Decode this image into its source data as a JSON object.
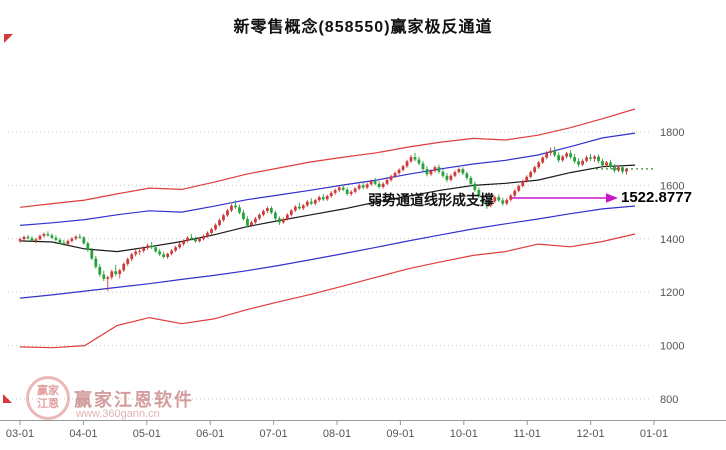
{
  "page": {
    "title": "新零售概念(858550)赢家极反通道"
  },
  "annotation": {
    "text": "弱势通道线形成支撑",
    "value": "1522.8777"
  },
  "watermark": {
    "brand": "赢家江恩软件",
    "site": "www.360gann.cn",
    "logo_text": "赢家江恩"
  },
  "chart_data": {
    "type": "candlestick",
    "title": "新零售概念(858550)赢家极反通道",
    "ylabel": "",
    "xlabel": "",
    "ylim": [
      800,
      1900
    ],
    "y_ticks": [
      800,
      1000,
      1200,
      1400,
      1600,
      1800
    ],
    "x_ticks": [
      "03-01",
      "04-01",
      "05-01",
      "06-01",
      "07-01",
      "08-01",
      "09-01",
      "10-01",
      "11-01",
      "12-01",
      "01-01"
    ],
    "grid": "horizontal-dotted",
    "legend": "none",
    "support_value": 1522.8777,
    "last_price": 1662,
    "colors": {
      "up": "#cc3a3a",
      "down": "#27a13c",
      "channel_outer": "#e03c3c",
      "channel_inner": "#3232cc",
      "mid": "#1a1a1a",
      "last_price": "#3d8a3d",
      "arrow": "#c716c7",
      "grid": "#c9c9c9",
      "axis": "#9a9a9a",
      "tick_text": "#555555"
    },
    "lines": {
      "x_months": [
        0,
        0.51,
        1.02,
        1.53,
        2.04,
        2.55,
        3.06,
        3.57,
        4.08,
        4.59,
        5.11,
        5.62,
        6.13,
        6.64,
        7.15,
        7.66,
        8.17,
        8.68,
        9.19,
        9.7
      ],
      "upper_red": [
        1518,
        1532,
        1545,
        1568,
        1590,
        1585,
        1612,
        1642,
        1665,
        1688,
        1706,
        1722,
        1744,
        1762,
        1776,
        1770,
        1788,
        1816,
        1850,
        1886
      ],
      "upper_blue": [
        1450,
        1460,
        1472,
        1490,
        1505,
        1500,
        1522,
        1546,
        1564,
        1582,
        1602,
        1620,
        1642,
        1662,
        1680,
        1694,
        1714,
        1745,
        1778,
        1796
      ],
      "mid_black": [
        1392,
        1388,
        1362,
        1352,
        1370,
        1390,
        1415,
        1445,
        1468,
        1490,
        1512,
        1538,
        1560,
        1582,
        1600,
        1608,
        1620,
        1648,
        1670,
        1676
      ],
      "lower_blue": [
        1178,
        1190,
        1204,
        1218,
        1232,
        1248,
        1263,
        1280,
        1300,
        1322,
        1345,
        1368,
        1392,
        1415,
        1437,
        1456,
        1474,
        1494,
        1512,
        1523
      ],
      "lower_red": [
        995,
        992,
        1000,
        1075,
        1105,
        1082,
        1100,
        1134,
        1164,
        1192,
        1224,
        1256,
        1288,
        1314,
        1338,
        1352,
        1380,
        1370,
        1390,
        1418
      ]
    },
    "candles_ohlc": [
      [
        1392,
        1405,
        1385,
        1399
      ],
      [
        1399,
        1412,
        1394,
        1407
      ],
      [
        1407,
        1415,
        1398,
        1402
      ],
      [
        1402,
        1410,
        1388,
        1393
      ],
      [
        1393,
        1404,
        1384,
        1398
      ],
      [
        1398,
        1416,
        1395,
        1411
      ],
      [
        1411,
        1424,
        1405,
        1418
      ],
      [
        1418,
        1428,
        1408,
        1413
      ],
      [
        1413,
        1420,
        1399,
        1404
      ],
      [
        1404,
        1412,
        1390,
        1396
      ],
      [
        1396,
        1402,
        1380,
        1385
      ],
      [
        1385,
        1396,
        1374,
        1380
      ],
      [
        1380,
        1397,
        1376,
        1392
      ],
      [
        1392,
        1406,
        1387,
        1401
      ],
      [
        1401,
        1413,
        1395,
        1408
      ],
      [
        1408,
        1418,
        1400,
        1405
      ],
      [
        1405,
        1410,
        1378,
        1383
      ],
      [
        1383,
        1390,
        1352,
        1358
      ],
      [
        1358,
        1366,
        1320,
        1326
      ],
      [
        1326,
        1336,
        1288,
        1295
      ],
      [
        1295,
        1305,
        1258,
        1266
      ],
      [
        1266,
        1280,
        1242,
        1250
      ],
      [
        1250,
        1262,
        1205,
        1256
      ],
      [
        1256,
        1284,
        1248,
        1278
      ],
      [
        1278,
        1302,
        1260,
        1268
      ],
      [
        1268,
        1288,
        1252,
        1282
      ],
      [
        1282,
        1312,
        1276,
        1306
      ],
      [
        1306,
        1330,
        1298,
        1324
      ],
      [
        1324,
        1348,
        1316,
        1342
      ],
      [
        1342,
        1360,
        1334,
        1352
      ],
      [
        1352,
        1366,
        1340,
        1355
      ],
      [
        1355,
        1372,
        1348,
        1366
      ],
      [
        1366,
        1382,
        1358,
        1375
      ],
      [
        1375,
        1388,
        1362,
        1368
      ],
      [
        1368,
        1376,
        1348,
        1353
      ],
      [
        1353,
        1362,
        1336,
        1342
      ],
      [
        1342,
        1352,
        1326,
        1332
      ],
      [
        1332,
        1348,
        1325,
        1344
      ],
      [
        1344,
        1362,
        1338,
        1356
      ],
      [
        1356,
        1374,
        1350,
        1368
      ],
      [
        1368,
        1386,
        1362,
        1380
      ],
      [
        1380,
        1398,
        1374,
        1392
      ],
      [
        1392,
        1410,
        1386,
        1404
      ],
      [
        1404,
        1418,
        1395,
        1399
      ],
      [
        1399,
        1408,
        1385,
        1391
      ],
      [
        1391,
        1405,
        1386,
        1400
      ],
      [
        1400,
        1416,
        1394,
        1410
      ],
      [
        1410,
        1428,
        1404,
        1422
      ],
      [
        1422,
        1442,
        1416,
        1436
      ],
      [
        1436,
        1458,
        1430,
        1452
      ],
      [
        1452,
        1476,
        1446,
        1470
      ],
      [
        1470,
        1494,
        1464,
        1488
      ],
      [
        1488,
        1512,
        1482,
        1506
      ],
      [
        1506,
        1530,
        1500,
        1524
      ],
      [
        1524,
        1544,
        1512,
        1518
      ],
      [
        1518,
        1528,
        1492,
        1498
      ],
      [
        1498,
        1508,
        1468,
        1474
      ],
      [
        1474,
        1484,
        1442,
        1450
      ],
      [
        1450,
        1468,
        1444,
        1462
      ],
      [
        1462,
        1482,
        1456,
        1476
      ],
      [
        1476,
        1496,
        1470,
        1490
      ],
      [
        1490,
        1510,
        1484,
        1504
      ],
      [
        1504,
        1522,
        1496,
        1515
      ],
      [
        1515,
        1522,
        1492,
        1498
      ],
      [
        1498,
        1506,
        1470,
        1476
      ],
      [
        1476,
        1484,
        1452,
        1462
      ],
      [
        1462,
        1480,
        1456,
        1474
      ],
      [
        1474,
        1496,
        1468,
        1490
      ],
      [
        1490,
        1512,
        1484,
        1506
      ],
      [
        1506,
        1526,
        1500,
        1520
      ],
      [
        1520,
        1536,
        1508,
        1514
      ],
      [
        1514,
        1530,
        1508,
        1525
      ],
      [
        1525,
        1545,
        1519,
        1539
      ],
      [
        1539,
        1552,
        1526,
        1532
      ],
      [
        1532,
        1550,
        1526,
        1545
      ],
      [
        1545,
        1562,
        1538,
        1556
      ],
      [
        1556,
        1568,
        1542,
        1548
      ],
      [
        1548,
        1566,
        1542,
        1560
      ],
      [
        1560,
        1578,
        1554,
        1572
      ],
      [
        1572,
        1588,
        1565,
        1582
      ],
      [
        1582,
        1598,
        1575,
        1592
      ],
      [
        1592,
        1604,
        1578,
        1584
      ],
      [
        1584,
        1592,
        1562,
        1568
      ],
      [
        1568,
        1582,
        1560,
        1576
      ],
      [
        1576,
        1594,
        1570,
        1588
      ],
      [
        1588,
        1606,
        1582,
        1600
      ],
      [
        1600,
        1612,
        1586,
        1592
      ],
      [
        1592,
        1610,
        1586,
        1604
      ],
      [
        1604,
        1622,
        1598,
        1616
      ],
      [
        1616,
        1628,
        1600,
        1606
      ],
      [
        1606,
        1616,
        1588,
        1594
      ],
      [
        1594,
        1612,
        1588,
        1606
      ],
      [
        1606,
        1626,
        1600,
        1620
      ],
      [
        1620,
        1640,
        1614,
        1634
      ],
      [
        1634,
        1652,
        1628,
        1646
      ],
      [
        1646,
        1664,
        1640,
        1658
      ],
      [
        1658,
        1678,
        1652,
        1672
      ],
      [
        1672,
        1696,
        1666,
        1690
      ],
      [
        1690,
        1714,
        1684,
        1706
      ],
      [
        1706,
        1722,
        1690,
        1697
      ],
      [
        1697,
        1708,
        1676,
        1682
      ],
      [
        1682,
        1692,
        1654,
        1661
      ],
      [
        1661,
        1672,
        1634,
        1642
      ],
      [
        1642,
        1660,
        1636,
        1654
      ],
      [
        1654,
        1674,
        1648,
        1668
      ],
      [
        1668,
        1678,
        1644,
        1651
      ],
      [
        1651,
        1660,
        1628,
        1636
      ],
      [
        1636,
        1646,
        1612,
        1621
      ],
      [
        1621,
        1642,
        1615,
        1636
      ],
      [
        1636,
        1656,
        1630,
        1650
      ],
      [
        1650,
        1668,
        1644,
        1661
      ],
      [
        1661,
        1668,
        1638,
        1645
      ],
      [
        1645,
        1652,
        1620,
        1628
      ],
      [
        1628,
        1636,
        1598,
        1606
      ],
      [
        1606,
        1614,
        1576,
        1583
      ],
      [
        1583,
        1592,
        1552,
        1560
      ],
      [
        1560,
        1570,
        1528,
        1535
      ],
      [
        1535,
        1548,
        1512,
        1524
      ],
      [
        1524,
        1546,
        1518,
        1540
      ],
      [
        1540,
        1562,
        1534,
        1556
      ],
      [
        1556,
        1566,
        1538,
        1544
      ],
      [
        1544,
        1554,
        1524,
        1532
      ],
      [
        1532,
        1552,
        1526,
        1546
      ],
      [
        1546,
        1568,
        1540,
        1562
      ],
      [
        1562,
        1586,
        1556,
        1580
      ],
      [
        1580,
        1604,
        1574,
        1598
      ],
      [
        1598,
        1622,
        1592,
        1616
      ],
      [
        1616,
        1638,
        1610,
        1632
      ],
      [
        1632,
        1656,
        1626,
        1650
      ],
      [
        1650,
        1674,
        1644,
        1668
      ],
      [
        1668,
        1692,
        1662,
        1686
      ],
      [
        1686,
        1710,
        1680,
        1704
      ],
      [
        1704,
        1728,
        1698,
        1722
      ],
      [
        1722,
        1742,
        1712,
        1730
      ],
      [
        1730,
        1745,
        1706,
        1713
      ],
      [
        1713,
        1724,
        1686,
        1694
      ],
      [
        1694,
        1714,
        1688,
        1708
      ],
      [
        1708,
        1726,
        1700,
        1720
      ],
      [
        1720,
        1732,
        1698,
        1706
      ],
      [
        1706,
        1718,
        1682,
        1690
      ],
      [
        1690,
        1702,
        1668,
        1678
      ],
      [
        1678,
        1698,
        1672,
        1692
      ],
      [
        1692,
        1712,
        1686,
        1705
      ],
      [
        1705,
        1718,
        1692,
        1700
      ],
      [
        1700,
        1714,
        1688,
        1708
      ],
      [
        1708,
        1716,
        1684,
        1691
      ],
      [
        1691,
        1700,
        1668,
        1675
      ],
      [
        1675,
        1692,
        1668,
        1686
      ],
      [
        1686,
        1696,
        1662,
        1669
      ],
      [
        1669,
        1680,
        1648,
        1656
      ],
      [
        1656,
        1674,
        1650,
        1668
      ],
      [
        1668,
        1676,
        1644,
        1652
      ],
      [
        1652,
        1666,
        1640,
        1662
      ]
    ]
  }
}
